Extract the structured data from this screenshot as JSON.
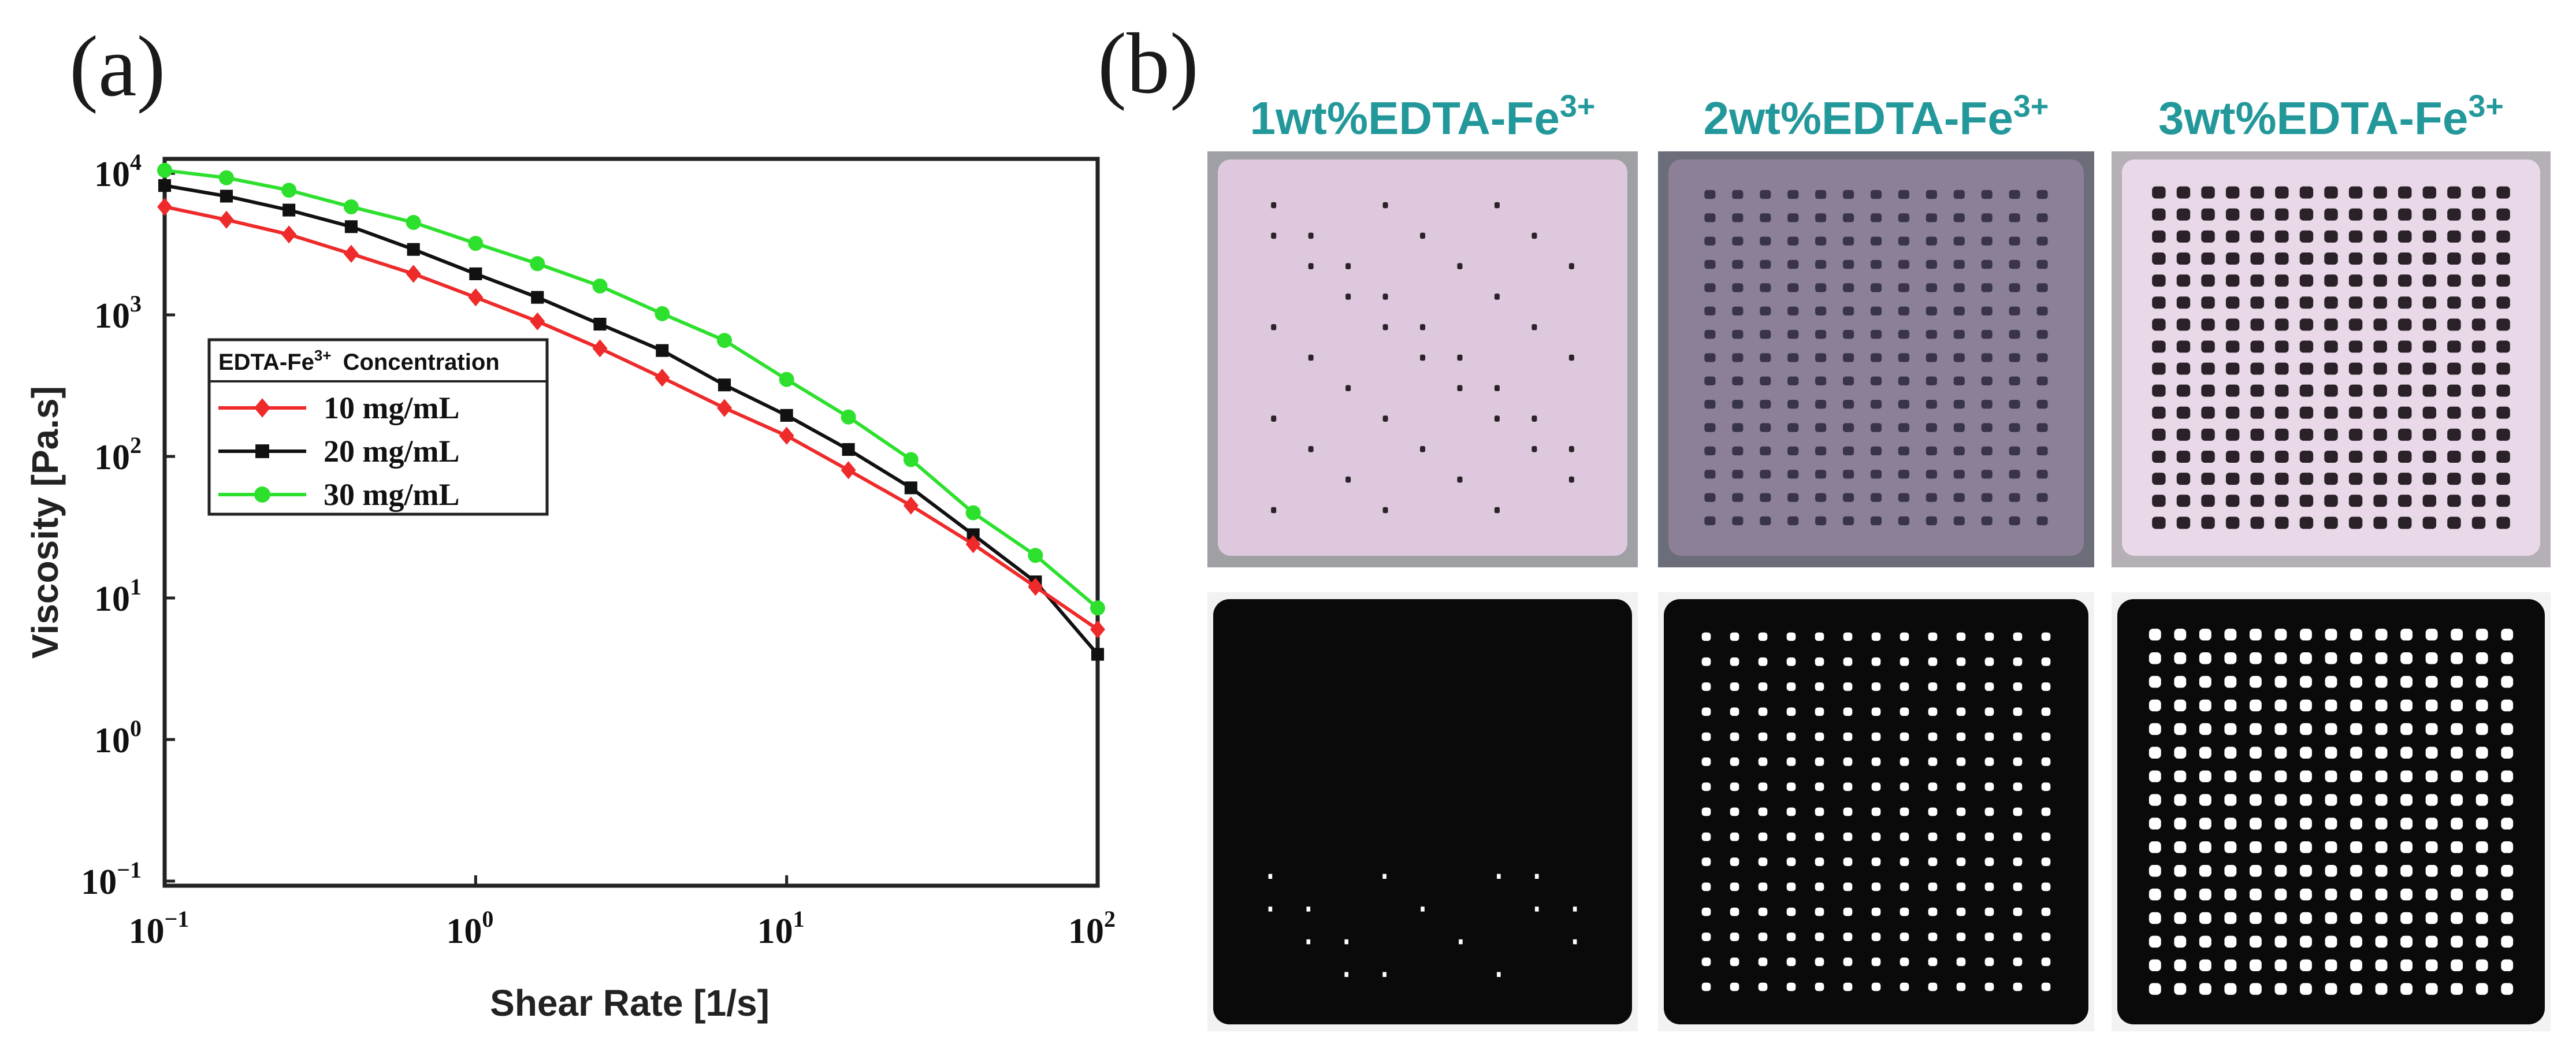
{
  "figure": {
    "panel_a_label": "(a)",
    "panel_b_label": "(b)"
  },
  "chart_data": {
    "type": "line",
    "xscale": "log",
    "yscale": "log",
    "xlabel": "Shear Rate [1/s]",
    "ylabel": "Viscosity [Pa.s]",
    "xlim": [
      0.1,
      100
    ],
    "ylim": [
      0.1,
      10000
    ],
    "x_ticks": [
      {
        "base": "10",
        "exp": "−1"
      },
      {
        "base": "10",
        "exp": "0"
      },
      {
        "base": "10",
        "exp": "1"
      },
      {
        "base": "10",
        "exp": "2"
      }
    ],
    "y_ticks": [
      {
        "base": "10",
        "exp": "−1"
      },
      {
        "base": "10",
        "exp": "0"
      },
      {
        "base": "10",
        "exp": "1"
      },
      {
        "base": "10",
        "exp": "2"
      },
      {
        "base": "10",
        "exp": "3"
      },
      {
        "base": "10",
        "exp": "4"
      }
    ],
    "legend": {
      "title_main": "EDTA-Fe",
      "title_sup": "3+",
      "title_rest": "Concentration",
      "position": "upper-left"
    },
    "x": [
      0.1,
      0.158,
      0.251,
      0.398,
      0.631,
      1.0,
      1.58,
      2.51,
      3.98,
      6.31,
      10.0,
      15.8,
      25.1,
      39.8,
      63.1,
      100
    ],
    "series": [
      {
        "name": "10 mg/mL",
        "color": "#ee2a2a",
        "marker": "diamond",
        "values": [
          5800,
          4700,
          3700,
          2700,
          1950,
          1330,
          900,
          580,
          360,
          220,
          140,
          80,
          45,
          24,
          12,
          6
        ]
      },
      {
        "name": "20 mg/mL",
        "color": "#111111",
        "marker": "square",
        "values": [
          8200,
          6900,
          5500,
          4200,
          2900,
          1950,
          1330,
          860,
          560,
          320,
          195,
          112,
          60,
          28,
          13,
          4
        ]
      },
      {
        "name": "30 mg/mL",
        "color": "#2ee02e",
        "marker": "circle",
        "values": [
          10500,
          9300,
          7600,
          5800,
          4500,
          3200,
          2300,
          1600,
          1020,
          660,
          350,
          190,
          95,
          40,
          20,
          8.5
        ]
      }
    ]
  },
  "panel_b": {
    "columns": [
      {
        "title_main": "1wt%EDTA-Fe",
        "title_sup": "3+",
        "photo_label": "1wt%EDTA-Fe3+ printed grid photo",
        "binary_label": "1wt%EDTA-Fe3+ binarized grid"
      },
      {
        "title_main": "2wt%EDTA-Fe",
        "title_sup": "3+",
        "photo_label": "2wt%EDTA-Fe3+ printed grid photo",
        "binary_label": "2wt%EDTA-Fe3+ binarized grid"
      },
      {
        "title_main": "3wt%EDTA-Fe",
        "title_sup": "3+",
        "photo_label": "3wt%EDTA-Fe3+ printed grid photo",
        "binary_label": "3wt%EDTA-Fe3+ binarized grid"
      }
    ],
    "colors": {
      "title": "#23989b",
      "photo_bg_1": "#9ea0a3",
      "photo_bg_2": "#6b6d78",
      "photo_bg_3": "#b4b0b6",
      "gel_1": "#ddc8dd",
      "gel_2": "#8c8098",
      "gel_3": "#e8d8e8",
      "binary": "#0a0a0a"
    }
  }
}
